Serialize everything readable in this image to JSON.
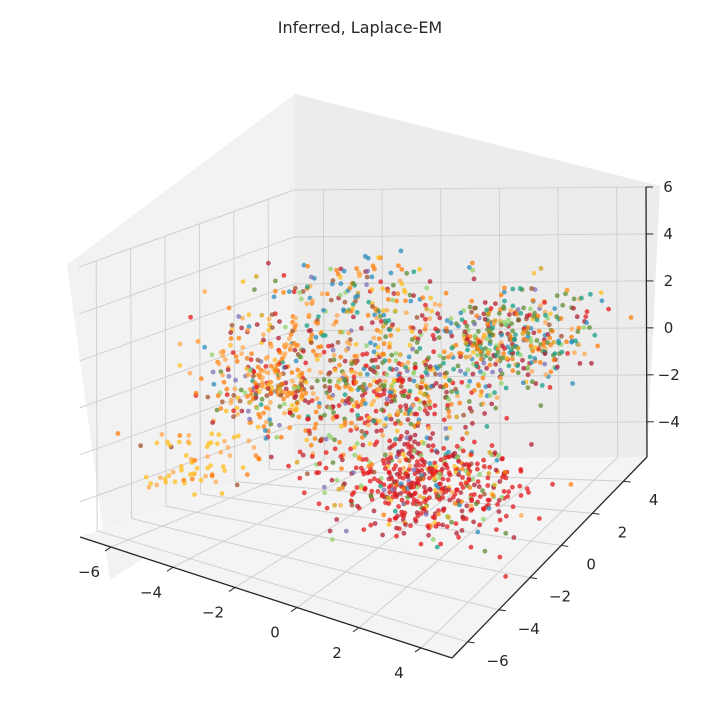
{
  "chart_data": {
    "type": "scatter",
    "subtype": "3d-scatter",
    "title": "Inferred, Laplace-EM",
    "grid": true,
    "x_ticks": [
      "−6",
      "−4",
      "−2",
      "0",
      "2",
      "4"
    ],
    "y_ticks": [
      "−6",
      "−4",
      "−2",
      "0",
      "2",
      "4"
    ],
    "z_ticks": [
      "−4",
      "−2",
      "0",
      "2",
      "4",
      "6"
    ],
    "xlim": [
      -7,
      5
    ],
    "ylim": [
      -7,
      5.5
    ],
    "zlim": [
      -5.5,
      6
    ],
    "colors": [
      "#e41a1c",
      "#ff7f0e",
      "#ffa94d",
      "#ffbf1f",
      "#b22234",
      "#5e8c31",
      "#2b8cbe",
      "#16a085",
      "#8fd46a",
      "#7b6fb5",
      "#a0522d",
      "#d4a017"
    ],
    "clusters": [
      {
        "center": [
          1.0,
          -1.0,
          -3.0
        ],
        "spread": [
          1.6,
          1.2,
          0.8
        ],
        "count": 520,
        "color_weights": [
          0.55,
          0.04,
          0.04,
          0.03,
          0.17,
          0.04,
          0.04,
          0.02,
          0.08,
          0.03,
          0.03,
          0.03
        ]
      },
      {
        "center": [
          -3.5,
          -1.5,
          0.8
        ],
        "spread": [
          1.2,
          1.2,
          1.4
        ],
        "count": 380,
        "color_weights": [
          0.08,
          0.28,
          0.24,
          0.08,
          0.06,
          0.06,
          0.04,
          0.03,
          0.03,
          0.02,
          0.06,
          0.02
        ]
      },
      {
        "center": [
          -5.2,
          -3.5,
          -2.8
        ],
        "spread": [
          0.8,
          0.8,
          0.8
        ],
        "count": 60,
        "color_weights": [
          0.0,
          0.1,
          0.2,
          0.65,
          0.0,
          0.0,
          0.0,
          0.0,
          0.0,
          0.0,
          0.05,
          0.0
        ]
      },
      {
        "center": [
          2.0,
          2.5,
          1.3
        ],
        "spread": [
          1.4,
          1.1,
          0.9
        ],
        "count": 400,
        "color_weights": [
          0.06,
          0.14,
          0.06,
          0.05,
          0.13,
          0.14,
          0.08,
          0.13,
          0.1,
          0.04,
          0.04,
          0.03
        ]
      },
      {
        "center": [
          -0.8,
          0.3,
          0.0
        ],
        "spread": [
          1.3,
          1.3,
          1.2
        ],
        "count": 420,
        "color_weights": [
          0.18,
          0.1,
          0.06,
          0.1,
          0.12,
          0.12,
          0.06,
          0.06,
          0.09,
          0.04,
          0.04,
          0.03
        ]
      },
      {
        "center": [
          -2.8,
          2.5,
          2.6
        ],
        "spread": [
          1.2,
          0.9,
          0.8
        ],
        "count": 140,
        "color_weights": [
          0.04,
          0.16,
          0.1,
          0.12,
          0.06,
          0.06,
          0.2,
          0.06,
          0.03,
          0.03,
          0.1,
          0.04
        ]
      }
    ]
  }
}
